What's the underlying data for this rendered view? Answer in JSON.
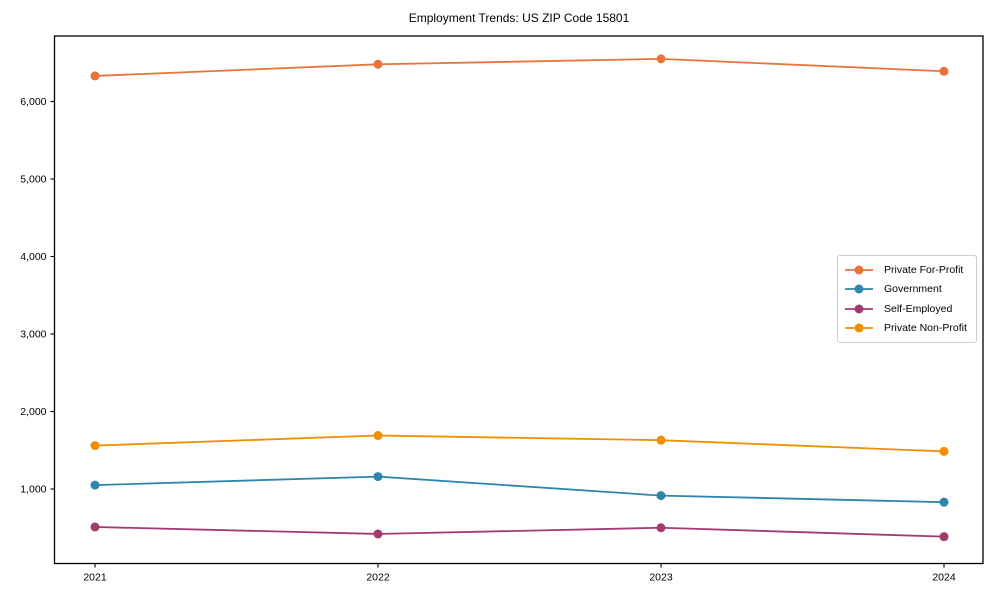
{
  "chart_data": {
    "type": "line",
    "title": "Employment Trends: US ZIP Code 15801",
    "x": [
      2021,
      2022,
      2023,
      2024
    ],
    "x_labels": [
      "2021",
      "2022",
      "2023",
      "2024"
    ],
    "series": [
      {
        "name": "Private For-Profit",
        "color": "#E8743B",
        "values": [
          6330,
          6480,
          6550,
          6390
        ]
      },
      {
        "name": "Government",
        "color": "#2E86AB",
        "values": [
          1050,
          1160,
          915,
          830
        ]
      },
      {
        "name": "Self-Employed",
        "color": "#A23B72",
        "values": [
          510,
          420,
          500,
          385
        ]
      },
      {
        "name": "Private Non-Profit",
        "color": "#F18F01",
        "values": [
          1560,
          1690,
          1630,
          1485
        ]
      }
    ],
    "yticks": [
      {
        "value": 1000,
        "label": "1,000"
      },
      {
        "value": 2000,
        "label": "2,000"
      },
      {
        "value": 3000,
        "label": "3,000"
      },
      {
        "value": 4000,
        "label": "4,000"
      },
      {
        "value": 5000,
        "label": "5,000"
      },
      {
        "value": 6000,
        "label": "6,000"
      }
    ],
    "xlabel": "",
    "ylabel": "",
    "ylim": [
      20,
      6845
    ],
    "grid": false,
    "legend_position": "center-right",
    "legend": [
      "Private For-Profit",
      "Government",
      "Self-Employed",
      "Private Non-Profit"
    ],
    "axis_color": "#000000",
    "tick_label_color": "#000000"
  }
}
